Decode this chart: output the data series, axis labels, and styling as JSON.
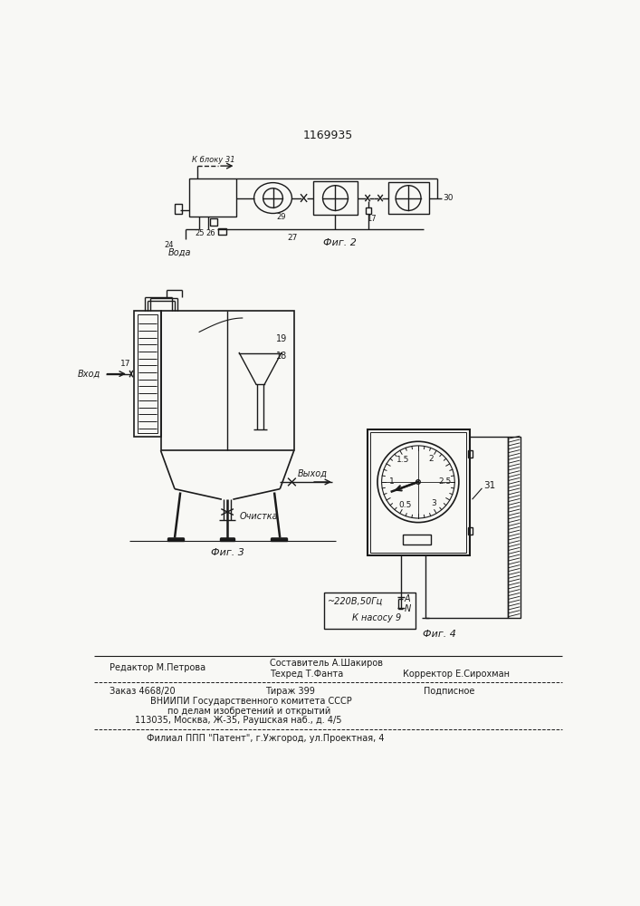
{
  "patent_number": "1169935",
  "bg_color": "#f8f8f5",
  "line_color": "#1a1a1a",
  "fig2_label": "Фиг. 2",
  "fig3_label": "Фиг. 3",
  "fig4_label": "Фиг. 4"
}
